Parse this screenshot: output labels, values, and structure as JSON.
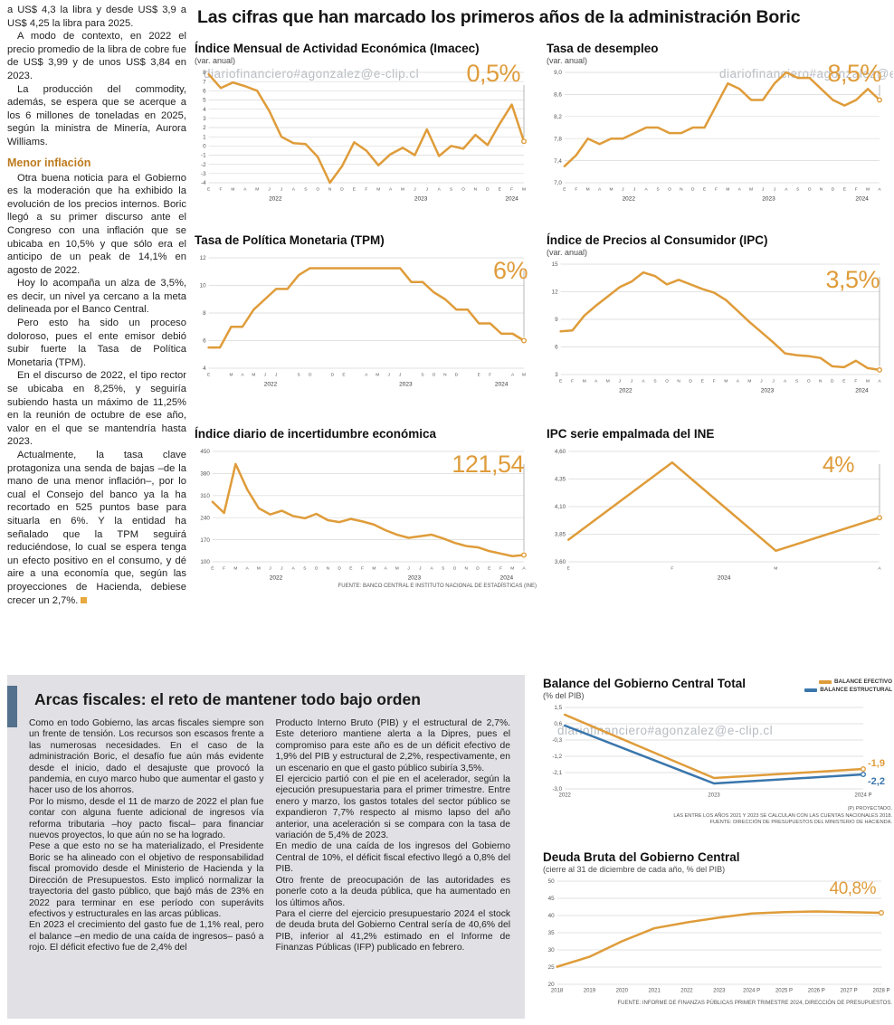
{
  "page": {
    "main_title": "Las cifras que han marcado los primeros años de la administración Boric",
    "watermark": "diariofinanciero#agonzalez@e-clip.cl",
    "colors": {
      "accent_orange": "#DF9C3A",
      "accent_blue": "#3A76AC"
    }
  },
  "article": {
    "paragraphs": [
      "a US$ 4,3 la libra y desde US$ 3,9 a US$ 4,25 la libra para 2025.",
      "A modo de contexto, en 2022 el precio promedio de la libra de cobre fue de US$ 3,99 y de unos US$ 3,84 en 2023.",
      "La producción del commodity, además, se espera que se acerque a los 6 millones de toneladas en 2025, según la ministra de Minería, Aurora Williams."
    ],
    "subhead": "Menor inflación",
    "paragraphs2": [
      "Otra buena noticia para el Gobierno es la moderación que ha exhibido la evolución de los precios internos. Boric llegó a su primer discurso ante el Congreso con una inflación que se ubicaba en 10,5% y que sólo era el anticipo de un peak de 14,1% en agosto de 2022.",
      "Hoy lo acompaña un alza de 3,5%, es decir, un nivel ya cercano a la meta delineada por el Banco Central.",
      "Pero esto ha sido un proceso doloroso, pues el ente emisor debió subir fuerte la Tasa de Política Monetaria (TPM).",
      "En el discurso de 2022, el tipo rector se ubicaba en 8,25%, y seguiría subiendo hasta un máximo de 11,25% en la reunión de octubre de ese año, valor en el que se mantendría hasta 2023.",
      "Actualmente, la tasa clave protagoniza una senda de bajas –de la mano de una menor inflación–, por lo cual el Consejo del banco ya la ha recortado en 525 puntos base para situarla en 6%. Y la entidad ha señalado que la TPM seguirá reduciéndose, lo cual se espera tenga un efecto positivo en el consumo, y dé aire a una economía que, según las proyecciones de Hacienda, debiese crecer un 2,7%."
    ]
  },
  "fiscal": {
    "title": "Arcas fiscales: el reto de mantener todo bajo orden",
    "col1": [
      "Como en todo Gobierno, las arcas fiscales siempre son un frente de tensión. Los recursos son escasos frente a las numerosas necesidades. En el caso de la administración Boric, el desafío fue aún más evidente desde el inicio, dado el desajuste que provocó la pandemia, en cuyo marco hubo que aumentar el gasto y hacer uso de los ahorros.",
      "Por lo mismo, desde el 11 de marzo de 2022 el plan fue contar con alguna fuente adicional de ingresos vía reforma tributaria –hoy pacto fiscal– para financiar nuevos proyectos, lo que aún no se ha logrado.",
      "Pese a que esto no se ha materializado, el Presidente Boric se ha alineado con el objetivo de responsabilidad fiscal promovido desde el Ministerio de Hacienda y la Dirección de Presupuestos. Esto implicó normalizar la trayectoria del gasto público, que bajó más de 23% en 2022 para terminar en ese período con superávits efectivos y estructurales en las arcas públicas.",
      "En 2023 el crecimiento del gasto fue de 1,1% real, pero el balance –en medio de una caída de ingresos– pasó a rojo. El déficit efectivo fue de 2,4% del"
    ],
    "col2": [
      "Producto Interno Bruto (PIB) y el estructural de 2,7%. Este deterioro mantiene alerta a la Dipres, pues el compromiso para este año es de un déficit efectivo de 1,9% del PIB y estructural de 2,2%, respectivamente, en un escenario en que el gasto público subiría 3,5%.",
      "El ejercicio partió con el pie en el acelerador, según la ejecución presupuestaria para el primer trimestre. Entre enero y marzo, los gastos totales del sector público se expandieron 7,7% respecto al mismo lapso del año anterior, una aceleración si se compara con la tasa de variación de 5,4% de 2023.",
      "En medio de una caída de los ingresos del Gobierno Central de 10%, el déficit fiscal efectivo llegó a 0,8% del PIB.",
      "Otro frente de preocupación de las autoridades es ponerle coto a la deuda pública, que ha aumentado en los últimos años.",
      "Para el cierre del ejercicio presupuestario 2024 el stock de deuda bruta del Gobierno Central sería de 40,6% del PIB, inferior al 41,2% estimado en el Informe de Finanzas Públicas (IFP) publicado en febrero."
    ]
  },
  "chart_data": [
    {
      "id": "imacec",
      "type": "line",
      "title": "Índice Mensual de Actividad Económica (Imacec)",
      "subtitle": "(var. anual)",
      "highlight": "0,5%",
      "ylim": [
        -4,
        8
      ],
      "yticks": [
        8,
        7,
        6,
        5,
        4,
        3,
        2,
        1,
        0,
        -1,
        -2,
        -3,
        -4
      ],
      "xlabels": [
        "E",
        "F",
        "M",
        "A",
        "M",
        "J",
        "J",
        "A",
        "S",
        "O",
        "N",
        "D",
        "E",
        "F",
        "M",
        "A",
        "M",
        "J",
        "J",
        "A",
        "S",
        "O",
        "N",
        "D",
        "E",
        "F",
        "M"
      ],
      "year_spans": [
        {
          "label": "2022",
          "from": 0,
          "to": 11
        },
        {
          "label": "2023",
          "from": 12,
          "to": 23
        },
        {
          "label": "2024",
          "from": 24,
          "to": 26
        }
      ],
      "connector": true,
      "series": [
        {
          "color": "#DF9C3A",
          "values": [
            7.8,
            6.3,
            6.9,
            6.5,
            6.0,
            3.8,
            1.0,
            0.3,
            0.2,
            -1.2,
            -4.0,
            -2.2,
            0.4,
            -0.5,
            -2.1,
            -0.9,
            -0.2,
            -1.0,
            1.8,
            -1.1,
            0.0,
            -0.3,
            1.2,
            0.1,
            2.4,
            4.5,
            0.5
          ]
        }
      ]
    },
    {
      "id": "desempleo",
      "type": "line",
      "title": "Tasa de desempleo",
      "subtitle": "(var. anual)",
      "highlight": "8,5%",
      "ylim": [
        7.0,
        9.0
      ],
      "yticks": [
        9.0,
        8.6,
        8.2,
        7.8,
        7.4,
        7.0
      ],
      "ytick_labels": [
        "9,0",
        "8,6",
        "8,2",
        "7,8",
        "7,4",
        "7,0"
      ],
      "xlabels": [
        "E",
        "F",
        "M",
        "A",
        "M",
        "J",
        "J",
        "A",
        "S",
        "O",
        "N",
        "D",
        "E",
        "F",
        "M",
        "A",
        "M",
        "J",
        "J",
        "A",
        "S",
        "O",
        "N",
        "D",
        "E",
        "F",
        "M",
        "A"
      ],
      "year_spans": [
        {
          "label": "2022",
          "from": 0,
          "to": 11
        },
        {
          "label": "2023",
          "from": 12,
          "to": 23
        },
        {
          "label": "2024",
          "from": 24,
          "to": 27
        }
      ],
      "connector": true,
      "series": [
        {
          "color": "#DF9C3A",
          "values": [
            7.3,
            7.5,
            7.8,
            7.7,
            7.8,
            7.8,
            7.9,
            8.0,
            8.0,
            7.9,
            7.9,
            8.0,
            8.0,
            8.4,
            8.8,
            8.7,
            8.5,
            8.5,
            8.8,
            9.0,
            8.9,
            8.9,
            8.7,
            8.5,
            8.4,
            8.5,
            8.7,
            8.5
          ]
        }
      ]
    },
    {
      "id": "tpm",
      "type": "line",
      "title": "Tasa de Política Monetaria (TPM)",
      "highlight": "6%",
      "ylim": [
        4,
        12
      ],
      "yticks": [
        12,
        10,
        8,
        6,
        4
      ],
      "xlabels": [
        "E",
        "",
        "M",
        "A",
        "M",
        "J",
        "J",
        "",
        "S",
        "O",
        "",
        "D",
        "E",
        "",
        "A",
        "M",
        "J",
        "J",
        "",
        "S",
        "O",
        "N",
        "D",
        "",
        "E",
        "F",
        "",
        "A",
        "M"
      ],
      "year_spans": [
        {
          "label": "2022",
          "from": 0,
          "to": 11
        },
        {
          "label": "2023",
          "from": 12,
          "to": 23
        },
        {
          "label": "2024",
          "from": 24,
          "to": 28
        }
      ],
      "connector": true,
      "series": [
        {
          "color": "#DF9C3A",
          "values": [
            5.5,
            5.5,
            7.0,
            7.0,
            8.25,
            9.0,
            9.75,
            9.75,
            10.75,
            11.25,
            11.25,
            11.25,
            11.25,
            11.25,
            11.25,
            11.25,
            11.25,
            11.25,
            10.25,
            10.25,
            9.5,
            9.0,
            8.25,
            8.25,
            7.25,
            7.25,
            6.5,
            6.5,
            6.0
          ]
        }
      ]
    },
    {
      "id": "ipc",
      "type": "line",
      "title": "Índice de Precios al Consumidor (IPC)",
      "subtitle": "(var. anual)",
      "highlight": "3,5%",
      "ylim": [
        3,
        15
      ],
      "yticks": [
        15,
        12,
        9,
        6,
        3
      ],
      "xlabels": [
        "E",
        "F",
        "M",
        "A",
        "M",
        "J",
        "J",
        "A",
        "S",
        "O",
        "N",
        "D",
        "E",
        "F",
        "M",
        "A",
        "M",
        "J",
        "J",
        "A",
        "S",
        "O",
        "N",
        "D",
        "E",
        "F",
        "M",
        "A"
      ],
      "year_spans": [
        {
          "label": "2022",
          "from": 0,
          "to": 11
        },
        {
          "label": "2023",
          "from": 12,
          "to": 23
        },
        {
          "label": "2024",
          "from": 24,
          "to": 27
        }
      ],
      "connector": true,
      "series": [
        {
          "color": "#DF9C3A",
          "values": [
            7.7,
            7.8,
            9.4,
            10.5,
            11.5,
            12.5,
            13.1,
            14.1,
            13.7,
            12.8,
            13.3,
            12.8,
            12.3,
            11.9,
            11.1,
            9.9,
            8.7,
            7.6,
            6.5,
            5.3,
            5.1,
            5.0,
            4.8,
            3.9,
            3.8,
            4.5,
            3.7,
            3.5
          ]
        }
      ]
    },
    {
      "id": "incert",
      "type": "line",
      "title": "Índice diario de incertidumbre económica",
      "highlight": "121,54",
      "ylim": [
        100,
        450
      ],
      "yticks": [
        450,
        380,
        310,
        240,
        170,
        100
      ],
      "xlabels": [
        "E",
        "F",
        "M",
        "A",
        "M",
        "J",
        "J",
        "A",
        "S",
        "O",
        "N",
        "D",
        "E",
        "F",
        "M",
        "A",
        "M",
        "J",
        "J",
        "A",
        "S",
        "O",
        "N",
        "D",
        "E",
        "F",
        "M",
        "A"
      ],
      "year_spans": [
        {
          "label": "2022",
          "from": 0,
          "to": 11
        },
        {
          "label": "2023",
          "from": 12,
          "to": 23
        },
        {
          "label": "2024",
          "from": 24,
          "to": 27
        }
      ],
      "connector": true,
      "source": "FUENTE: BANCO CENTRAL E INSTITUTO NACIONAL DE ESTADÍSTICAS (INE)",
      "series": [
        {
          "color": "#DF9C3A",
          "values": [
            290,
            255,
            410,
            330,
            270,
            250,
            262,
            245,
            238,
            252,
            232,
            226,
            236,
            228,
            218,
            200,
            186,
            176,
            181,
            186,
            174,
            160,
            150,
            146,
            134,
            126,
            118,
            121.54
          ]
        }
      ]
    },
    {
      "id": "ipcine",
      "type": "line",
      "title": "IPC serie empalmada del INE",
      "highlight": "4%",
      "ylim": [
        3.6,
        4.6
      ],
      "yticks": [
        4.6,
        4.35,
        4.1,
        3.85,
        3.6
      ],
      "ytick_labels": [
        "4,60",
        "4,35",
        "4,10",
        "3,85",
        "3,60"
      ],
      "xlabels": [
        "E",
        "F",
        "M",
        "A"
      ],
      "year_spans": [
        {
          "label": "2024",
          "from": 0,
          "to": 3
        }
      ],
      "connector": true,
      "series": [
        {
          "color": "#DF9C3A",
          "values": [
            3.8,
            4.5,
            3.7,
            4.0
          ]
        }
      ]
    },
    {
      "id": "balance",
      "type": "line",
      "title": "Balance del Gobierno Central Total",
      "subtitle": "(% del PIB)",
      "ylim": [
        -3.0,
        1.5
      ],
      "yticks": [
        1.5,
        0.6,
        -0.3,
        -1.2,
        -2.1,
        -3.0
      ],
      "ytick_labels": [
        "1,5",
        "0,6",
        "-0,3",
        "-1,2",
        "-2,1",
        "-3,0"
      ],
      "xlabels": [
        "2022",
        "2023",
        "2024 P"
      ],
      "series": [
        {
          "name": "BALANCE EFECTIVO",
          "color": "#DF9C3A",
          "values": [
            1.1,
            -2.4,
            -1.9
          ]
        },
        {
          "name": "BALANCE ESTRUCTURAL",
          "color": "#3A76AC",
          "values": [
            0.5,
            -2.7,
            -2.2
          ]
        }
      ],
      "end_labels": [
        {
          "series": 0,
          "text": "-1,9",
          "color": "#DF9C3A"
        },
        {
          "series": 1,
          "text": "-2,2",
          "color": "#3A76AC"
        }
      ],
      "footnotes": [
        "(P) PROYECTADO.",
        "LAS ENTRE LOS AÑOS 2021 Y 2023 SE CALCULAN CON LAS CUENTAS NACIONALES 2018.",
        "FUENTE: DIRECCIÓN DE PRESUPUESTOS DEL MINISTERIO DE HACIENDA."
      ]
    },
    {
      "id": "deuda",
      "type": "line",
      "title": "Deuda Bruta del Gobierno Central",
      "subtitle": "(cierre al 31 de diciembre de cada año, % del PIB)",
      "highlight": "40,8%",
      "ylim": [
        20,
        50
      ],
      "yticks": [
        50,
        45,
        40,
        35,
        30,
        25,
        20
      ],
      "xlabels": [
        "2018",
        "2019",
        "2020",
        "2021",
        "2022",
        "2023",
        "2024 P",
        "2025 P",
        "2026 P",
        "2027 P",
        "2028 P"
      ],
      "source": "FUENTE: INFORME DE FINANZAS PÚBLICAS PRIMER TRIMESTRE 2024, DIRECCIÓN DE PRESUPUESTOS.",
      "series": [
        {
          "color": "#DF9C3A",
          "values": [
            25.1,
            28.0,
            32.5,
            36.3,
            38.0,
            39.4,
            40.6,
            41.0,
            41.2,
            41.0,
            40.8
          ]
        }
      ]
    }
  ]
}
